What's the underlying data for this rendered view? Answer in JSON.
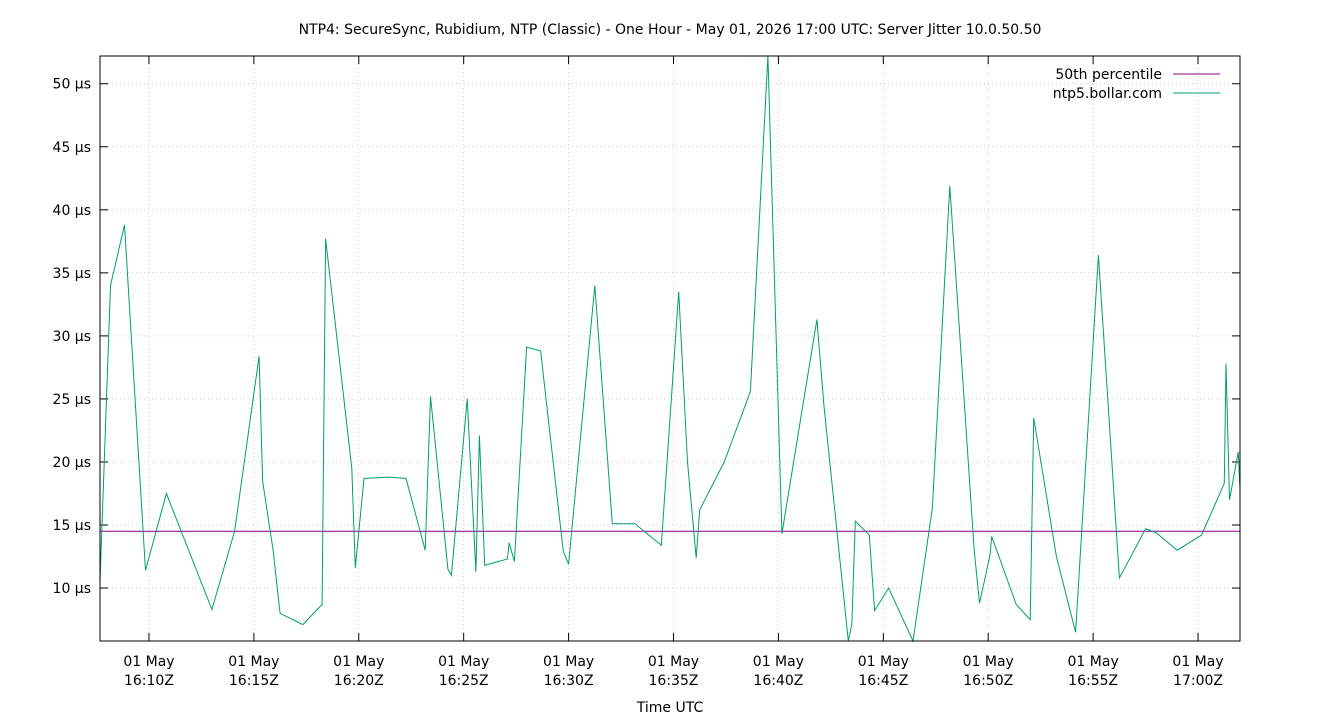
{
  "chart_data": {
    "type": "line",
    "title": "NTP4: SecureSync, Rubidium, NTP (Classic) - One Hour - May 01, 2026 17:00 UTC: Server Jitter 10.0.50.50",
    "xlabel": "Time UTC",
    "ylabel": "",
    "y_unit": "µs",
    "xlim": [
      "2026-05-01T16:07:40Z",
      "2026-05-01T17:02:00Z"
    ],
    "ylim": [
      5.8,
      52.2
    ],
    "grid": true,
    "legend_position": "top-right",
    "y_ticks": [
      {
        "value": 10,
        "label": "10 µs"
      },
      {
        "value": 15,
        "label": "15 µs"
      },
      {
        "value": 20,
        "label": "20 µs"
      },
      {
        "value": 25,
        "label": "25 µs"
      },
      {
        "value": 30,
        "label": "30 µs"
      },
      {
        "value": 35,
        "label": "35 µs"
      },
      {
        "value": 40,
        "label": "40 µs"
      },
      {
        "value": 45,
        "label": "45 µs"
      },
      {
        "value": 50,
        "label": "50 µs"
      }
    ],
    "x_ticks": [
      {
        "value": "2026-05-01T16:10:00Z",
        "line1": "01 May",
        "line2": "16:10Z"
      },
      {
        "value": "2026-05-01T16:15:00Z",
        "line1": "01 May",
        "line2": "16:15Z"
      },
      {
        "value": "2026-05-01T16:20:00Z",
        "line1": "01 May",
        "line2": "16:20Z"
      },
      {
        "value": "2026-05-01T16:25:00Z",
        "line1": "01 May",
        "line2": "16:25Z"
      },
      {
        "value": "2026-05-01T16:30:00Z",
        "line1": "01 May",
        "line2": "16:30Z"
      },
      {
        "value": "2026-05-01T16:35:00Z",
        "line1": "01 May",
        "line2": "16:35Z"
      },
      {
        "value": "2026-05-01T16:40:00Z",
        "line1": "01 May",
        "line2": "16:40Z"
      },
      {
        "value": "2026-05-01T16:45:00Z",
        "line1": "01 May",
        "line2": "16:45Z"
      },
      {
        "value": "2026-05-01T16:50:00Z",
        "line1": "01 May",
        "line2": "16:50Z"
      },
      {
        "value": "2026-05-01T16:55:00Z",
        "line1": "01 May",
        "line2": "16:55Z"
      },
      {
        "value": "2026-05-01T17:00:00Z",
        "line1": "01 May",
        "line2": "17:00Z"
      }
    ],
    "series": [
      {
        "name": "50th percentile",
        "color": "#8b008b",
        "points": [
          [
            "2026-05-01T16:07:40Z",
            14.5
          ],
          [
            "2026-05-01T17:02:00Z",
            14.5
          ]
        ]
      },
      {
        "name": "ntp5.bollar.com",
        "color": "#009e73",
        "points": [
          [
            "2026-05-01T16:07:40Z",
            10.5
          ],
          [
            "2026-05-01T16:08:10Z",
            34.0
          ],
          [
            "2026-05-01T16:08:50Z",
            38.8
          ],
          [
            "2026-05-01T16:09:50Z",
            11.4
          ],
          [
            "2026-05-01T16:10:50Z",
            17.5
          ],
          [
            "2026-05-01T16:13:00Z",
            8.3
          ],
          [
            "2026-05-01T16:14:05Z",
            14.5
          ],
          [
            "2026-05-01T16:15:15Z",
            28.4
          ],
          [
            "2026-05-01T16:15:25Z",
            18.5
          ],
          [
            "2026-05-01T16:15:55Z",
            13.0
          ],
          [
            "2026-05-01T16:16:15Z",
            8.0
          ],
          [
            "2026-05-01T16:17:20Z",
            7.1
          ],
          [
            "2026-05-01T16:18:15Z",
            8.7
          ],
          [
            "2026-05-01T16:18:25Z",
            37.7
          ],
          [
            "2026-05-01T16:19:40Z",
            19.5
          ],
          [
            "2026-05-01T16:19:50Z",
            11.6
          ],
          [
            "2026-05-01T16:20:15Z",
            18.7
          ],
          [
            "2026-05-01T16:21:25Z",
            18.8
          ],
          [
            "2026-05-01T16:22:15Z",
            18.7
          ],
          [
            "2026-05-01T16:23:10Z",
            13.0
          ],
          [
            "2026-05-01T16:23:25Z",
            25.2
          ],
          [
            "2026-05-01T16:24:15Z",
            11.5
          ],
          [
            "2026-05-01T16:24:25Z",
            11.0
          ],
          [
            "2026-05-01T16:25:10Z",
            25.0
          ],
          [
            "2026-05-01T16:25:35Z",
            11.3
          ],
          [
            "2026-05-01T16:25:45Z",
            22.1
          ],
          [
            "2026-05-01T16:26:00Z",
            11.8
          ],
          [
            "2026-05-01T16:27:05Z",
            12.3
          ],
          [
            "2026-05-01T16:27:10Z",
            13.6
          ],
          [
            "2026-05-01T16:27:25Z",
            12.1
          ],
          [
            "2026-05-01T16:28:00Z",
            29.1
          ],
          [
            "2026-05-01T16:28:40Z",
            28.8
          ],
          [
            "2026-05-01T16:29:45Z",
            12.9
          ],
          [
            "2026-05-01T16:30:00Z",
            11.9
          ],
          [
            "2026-05-01T16:31:15Z",
            34.0
          ],
          [
            "2026-05-01T16:32:05Z",
            15.1
          ],
          [
            "2026-05-01T16:33:10Z",
            15.1
          ],
          [
            "2026-05-01T16:34:25Z",
            13.4
          ],
          [
            "2026-05-01T16:35:15Z",
            33.5
          ],
          [
            "2026-05-01T16:35:40Z",
            20.0
          ],
          [
            "2026-05-01T16:36:05Z",
            12.4
          ],
          [
            "2026-05-01T16:36:15Z",
            16.2
          ],
          [
            "2026-05-01T16:37:25Z",
            20.0
          ],
          [
            "2026-05-01T16:38:40Z",
            25.6
          ],
          [
            "2026-05-01T16:39:30Z",
            52.2
          ],
          [
            "2026-05-01T16:40:10Z",
            14.3
          ],
          [
            "2026-05-01T16:41:50Z",
            31.3
          ],
          [
            "2026-05-01T16:42:10Z",
            24.5
          ],
          [
            "2026-05-01T16:43:20Z",
            5.8
          ],
          [
            "2026-05-01T16:43:30Z",
            7.1
          ],
          [
            "2026-05-01T16:43:40Z",
            15.3
          ],
          [
            "2026-05-01T16:44:20Z",
            14.2
          ],
          [
            "2026-05-01T16:44:35Z",
            8.2
          ],
          [
            "2026-05-01T16:45:15Z",
            10.0
          ],
          [
            "2026-05-01T16:46:25Z",
            5.8
          ],
          [
            "2026-05-01T16:47:20Z",
            16.3
          ],
          [
            "2026-05-01T16:48:10Z",
            41.9
          ],
          [
            "2026-05-01T16:49:20Z",
            13.0
          ],
          [
            "2026-05-01T16:49:35Z",
            8.8
          ],
          [
            "2026-05-01T16:50:05Z",
            12.6
          ],
          [
            "2026-05-01T16:50:10Z",
            14.1
          ],
          [
            "2026-05-01T16:51:20Z",
            8.7
          ],
          [
            "2026-05-01T16:52:00Z",
            7.5
          ],
          [
            "2026-05-01T16:52:10Z",
            23.5
          ],
          [
            "2026-05-01T16:53:15Z",
            12.5
          ],
          [
            "2026-05-01T16:54:10Z",
            6.5
          ],
          [
            "2026-05-01T16:55:15Z",
            36.4
          ],
          [
            "2026-05-01T16:56:15Z",
            10.8
          ],
          [
            "2026-05-01T16:57:30Z",
            14.7
          ],
          [
            "2026-05-01T16:58:00Z",
            14.4
          ],
          [
            "2026-05-01T16:59:00Z",
            13.0
          ],
          [
            "2026-05-01T17:00:10Z",
            14.2
          ],
          [
            "2026-05-01T17:01:15Z",
            18.3
          ],
          [
            "2026-05-01T17:01:20Z",
            27.8
          ],
          [
            "2026-05-01T17:01:30Z",
            17.0
          ],
          [
            "2026-05-01T17:01:55Z",
            20.8
          ],
          [
            "2026-05-01T17:02:00Z",
            17.8
          ]
        ]
      }
    ]
  }
}
